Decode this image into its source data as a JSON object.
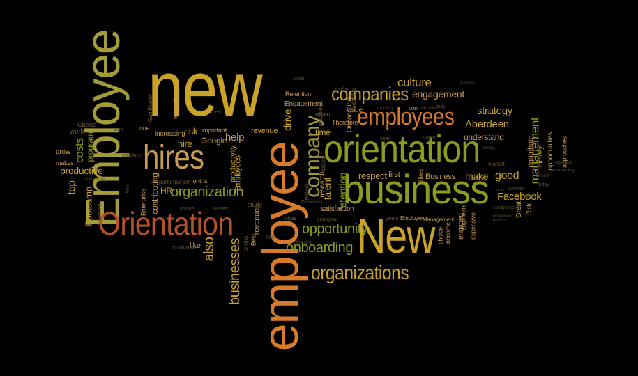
{
  "colors": {
    "background": "#000000",
    "gold": "#c9a227",
    "olive": "#8c9a1f",
    "orange": "#d77a2a",
    "rust": "#b3532a",
    "sand": "#c79a55",
    "khaki": "#a39a3a",
    "brown": "#9a6b3a"
  },
  "words": {
    "new": "new",
    "Employee": "Employee",
    "employee": "employee",
    "orientation": "orientation",
    "business": "business",
    "New": "New",
    "Orientation": "Orientation",
    "hires": "hires",
    "employees": "employees",
    "companies": "companies",
    "company": "company",
    "organizations": "organizations",
    "organization": "organization",
    "onboarding": "onboarding",
    "opportunity": "opportunity",
    "businesses": "businesses",
    "culture": "culture",
    "engagement": "engagement",
    "strategy": "strategy",
    "Aberdeen": "Aberdeen",
    "management": "management",
    "Facebook": "Facebook",
    "good": "good",
    "make": "make",
    "respect": "respect",
    "retention": "retention",
    "talent": "talent",
    "also": "also",
    "help": "help",
    "productive": "productive",
    "costs": "costs",
    "top": "top",
    "Bootcamp": "Bootcamp",
    "program": "program",
    "grow": "grow",
    "makes": "makes",
    "work": "work",
    "Google": "Google",
    "hire": "hire",
    "risk": "risk",
    "HR": "HR",
    "contributing": "contributing",
    "productivity": "productivity",
    "Employees": "Employees",
    "revenues": "revenues",
    "revenue": "revenue",
    "drive": "drive",
    "time": "time",
    "Business": "Business",
    "first": "first",
    "understand": "understand",
    "Onboarding": "Onboarding",
    "Therefore": "Therefore",
    "value": "value",
    "research": "research",
    "satisfaction": "satisfaction",
    "Engagement": "Engagement",
    "Retention": "Retention",
    "engaged": "engaged",
    "become": "become",
    "choice": "choice",
    "Management": "Management",
    "Employer": "Employer",
    "years": "years",
    "rates": "rates",
    "impact": "impact",
    "social": "social",
    "retain": "retain",
    "practices": "practices",
    "Hires": "Hires",
    "cost": "cost",
    "contribute": "contribute",
    "directly": "directly",
    "opportunities": "opportunities",
    "approaches": "approaches",
    "expensive": "expensive",
    "engineers": "engineers",
    "Great": "Great",
    "Risk": "Risk",
    "market": "market",
    "study": "study",
    "line": "line",
    "like": "like",
    "Best": "Best",
    "driving": "driving",
    "months": "months",
    "performance": "performance",
    "Enterprise": "Enterprise",
    "execution": "execution",
    "increasing": "increasing",
    "one": "one",
    "important": "important",
    "Choice": "Choice",
    "Gamification": "Gamification",
    "customer": "customer",
    "economy": "economy",
    "loss": "loss",
    "early": "early",
    "employers": "employers",
    "leadership": "leadership",
    "engaging": "engaging",
    "Growth": "Growth",
    "competition": "competition",
    "outsourcing": "outsourcing",
    "reported": "reported",
    "today": "today",
    "teams": "teams",
    "challenging": "challenging",
    "Moldt": "Moldt",
    "another": "another",
    "industry": "industry",
    "decision": "decision",
    "truly": "truly",
    "focused": "focused",
    "leaders": "leaders",
    "toward": "toward",
    "need": "need",
    "Sisters": "Sisters",
    "Furnished": "Furnished",
    "impact2": "impact",
    "loyalty": "loyalty",
    "process": "process",
    "workplace": "workplace",
    "code": "code",
    "success": "success",
    "reason": "reason",
    "ensure": "ensure",
    "Logos": "Logos",
    "best": "best",
    "percent": "percent",
    "introduce": "introduce",
    "number": "number",
    "manager": "manager",
    "tools": "tools",
    "dependent": "dependent",
    "careers": "careers",
    "unique": "unique",
    "part": "part",
    "real": "real",
    "role": "role",
    "ranks": "ranks",
    "impart": "impart"
  }
}
